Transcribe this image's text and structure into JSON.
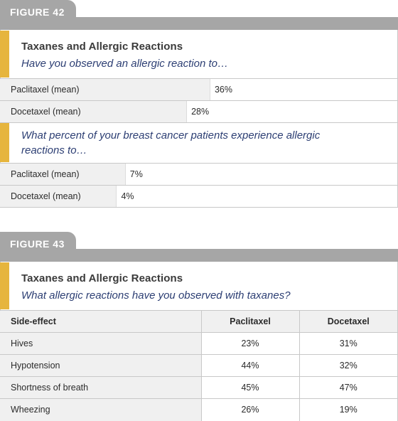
{
  "figure42": {
    "tab": "FIGURE 42",
    "title": "Taxanes and Allergic Reactions",
    "question1": "Have you observed an allergic reaction to…",
    "question2": "What percent of your breast cancer patients experience allergic reactions to…"
  },
  "figure43": {
    "tab": "FIGURE 43",
    "title": "Taxanes and Allergic Reactions",
    "question": "What allergic reactions have you observed with taxanes?"
  },
  "colors": {
    "accent": "#e6b53d",
    "tab": "#a6a6a6",
    "question_text": "#2c3e73",
    "row_fill": "#f0f0f0"
  },
  "chart_data": [
    {
      "type": "bar",
      "orientation": "horizontal",
      "title": "Have you observed an allergic reaction to…",
      "categories": [
        "Paclitaxel (mean)",
        "Docetaxel (mean)"
      ],
      "values": [
        36,
        28
      ],
      "value_labels": [
        "36%",
        "28%"
      ],
      "xlim": [
        0,
        100
      ]
    },
    {
      "type": "bar",
      "orientation": "horizontal",
      "title": "What percent of your breast cancer patients experience allergic reactions to…",
      "categories": [
        "Paclitaxel (mean)",
        "Docetaxel (mean)"
      ],
      "values": [
        7,
        4
      ],
      "value_labels": [
        "7%",
        "4%"
      ],
      "xlim": [
        0,
        100
      ]
    },
    {
      "type": "table",
      "title": "What allergic reactions have you observed with taxanes?",
      "columns": [
        "Side-effect",
        "Paclitaxel",
        "Docetaxel"
      ],
      "rows": [
        [
          "Hives",
          "23%",
          "31%"
        ],
        [
          "Hypotension",
          "44%",
          "32%"
        ],
        [
          "Shortness of breath",
          "45%",
          "47%"
        ],
        [
          "Wheezing",
          "26%",
          "19%"
        ]
      ]
    }
  ]
}
